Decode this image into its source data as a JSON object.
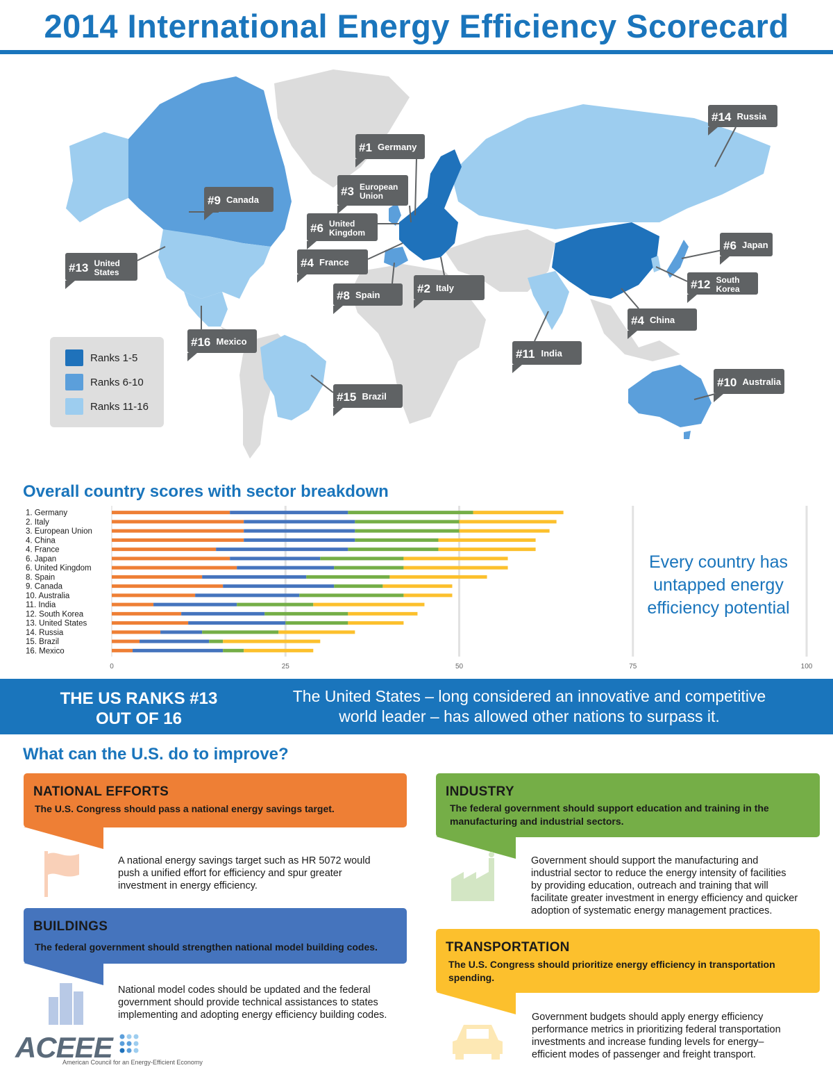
{
  "title": "2014 International Energy Efficiency Scorecard",
  "colors": {
    "brand": "#1a75bc",
    "rank_1_5": "#1f72bb",
    "rank_6_10": "#5b9fdb",
    "rank_11_16": "#9dcdef",
    "land": "#dcdcdc",
    "callout": "#5f6264",
    "national": "#ee7f35",
    "buildings": "#4574bd",
    "industry": "#75ae47",
    "transportation": "#fcc02d"
  },
  "map": {
    "callouts": [
      {
        "rank": "#1",
        "name": "Germany"
      },
      {
        "rank": "#3",
        "name": "European",
        "name2": "Union"
      },
      {
        "rank": "#6",
        "name": "United",
        "name2": "Kingdom"
      },
      {
        "rank": "#4",
        "name": "France"
      },
      {
        "rank": "#8",
        "name": "Spain"
      },
      {
        "rank": "#2",
        "name": "Italy"
      },
      {
        "rank": "#9",
        "name": "Canada"
      },
      {
        "rank": "#13",
        "name": "United",
        "name2": "States"
      },
      {
        "rank": "#16",
        "name": "Mexico"
      },
      {
        "rank": "#15",
        "name": "Brazil"
      },
      {
        "rank": "#14",
        "name": "Russia"
      },
      {
        "rank": "#6",
        "name": "Japan"
      },
      {
        "rank": "#12",
        "name": "South",
        "name2": "Korea"
      },
      {
        "rank": "#4",
        "name": "China"
      },
      {
        "rank": "#11",
        "name": "India"
      },
      {
        "rank": "#10",
        "name": "Australia"
      }
    ],
    "legend": [
      "Ranks 1-5",
      "Ranks 6-10",
      "Ranks 11-16"
    ]
  },
  "chart_title": "Overall country scores with sector breakdown",
  "side_note": "Every country has untapped energy efficiency potential",
  "chart_data": {
    "type": "bar",
    "orientation": "horizontal",
    "stacked": true,
    "categories": [
      "1. Germany",
      "2. Italy",
      "3. European Union",
      "4. China",
      "4. France",
      "6. Japan",
      "6. United Kingdom",
      "8. Spain",
      "9. Canada",
      "10. Australia",
      "11. India",
      "12. South Korea",
      "13. United States",
      "14. Russia",
      "15. Brazil",
      "16. Mexico"
    ],
    "series": [
      {
        "color": "#ee7f35",
        "values": [
          17,
          19,
          19,
          19,
          15,
          17,
          18,
          13,
          16,
          12,
          6,
          10,
          11,
          7,
          4,
          3
        ]
      },
      {
        "color": "#4574bd",
        "values": [
          17,
          16,
          16,
          16,
          19,
          13,
          14,
          15,
          16,
          15,
          12,
          12,
          14,
          6,
          10,
          13
        ]
      },
      {
        "color": "#75ae47",
        "values": [
          18,
          15,
          15,
          12,
          13,
          12,
          10,
          12,
          7,
          15,
          11,
          12,
          9,
          11,
          2,
          3
        ]
      },
      {
        "color": "#fcc02d",
        "values": [
          13,
          14,
          13,
          14,
          14,
          15,
          15,
          14,
          10,
          7,
          16,
          10,
          8,
          11,
          14,
          10
        ]
      }
    ],
    "xticks": [
      "0",
      "25",
      "50",
      "75",
      "100"
    ],
    "xlim": [
      0,
      100
    ],
    "grid": true
  },
  "banner": {
    "rank_line1": "THE US RANKS #13",
    "rank_line2": "OUT OF 16",
    "text_line1": "The United States – long considered an innovative and competitive",
    "text_line2": "world leader – has allowed other nations to surpass it."
  },
  "improve_title": "What can the U.S. do to improve?",
  "cards": {
    "national": {
      "heading": "NATIONAL EFFORTS",
      "sub1": "The U.S. Congress should pass a national energy savings target.",
      "body": [
        "A national energy savings target such as HR 5072 would",
        "push a unified effort for efficiency and spur greater",
        "investment in energy efficiency."
      ],
      "icon": "flag-icon"
    },
    "buildings": {
      "heading": "BUILDINGS",
      "sub1": "The federal government should strengthen national model building codes.",
      "body": [
        "National model codes should be updated and the federal",
        "government should provide technical assistances to states",
        "implementing and adopting energy efficiency building codes."
      ],
      "icon": "building-icon"
    },
    "industry": {
      "heading": "INDUSTRY",
      "sub1": "The federal government should support education and training in the",
      "sub2": "manufacturing and industrial sectors.",
      "body": [
        "Government should support the manufacturing and",
        "industrial sector to reduce the energy intensity of facilities",
        "by providing education, outreach and training that will",
        "facilitate greater investment in energy efficiency and quicker",
        "adoption of systematic energy management practices."
      ],
      "icon": "factory-icon"
    },
    "transportation": {
      "heading": "TRANSPORTATION",
      "sub1": "The U.S. Congress should prioritize energy efficiency in transportation",
      "sub2": "spending.",
      "body": [
        "Government budgets should apply energy efficiency",
        "performance metrics in prioritizing federal transportation",
        "investments and increase funding levels for energy–",
        "efficient modes of passenger and freight transport."
      ],
      "icon": "car-icon"
    }
  },
  "logo": {
    "word": "ACEEE",
    "tagline": "American Council for an Energy-Efficient Economy"
  }
}
